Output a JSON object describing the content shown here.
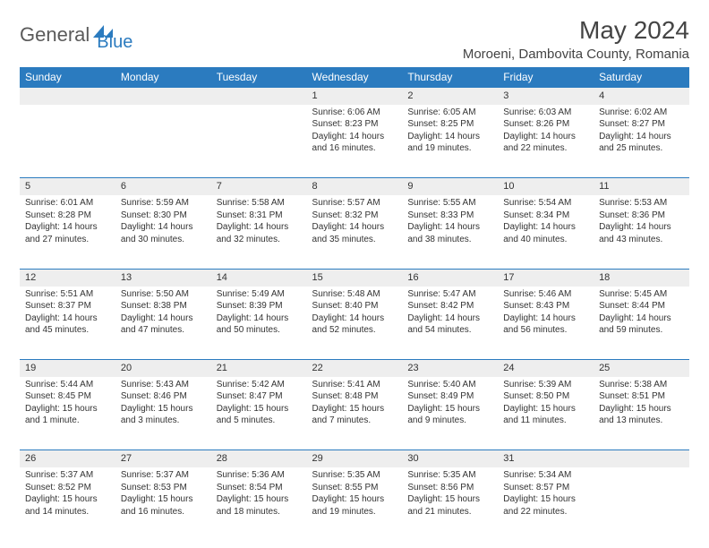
{
  "brand": {
    "part1": "General",
    "part2": "Blue"
  },
  "title": "May 2024",
  "location": "Moroeni, Dambovita County, Romania",
  "colors": {
    "header_bg": "#2b7bbf",
    "daynum_bg": "#eeeeee",
    "text": "#333333",
    "border": "#2b7bbf"
  },
  "day_headers": [
    "Sunday",
    "Monday",
    "Tuesday",
    "Wednesday",
    "Thursday",
    "Friday",
    "Saturday"
  ],
  "weeks": [
    [
      null,
      null,
      null,
      {
        "n": "1",
        "sr": "Sunrise: 6:06 AM",
        "ss": "Sunset: 8:23 PM",
        "d1": "Daylight: 14 hours",
        "d2": "and 16 minutes."
      },
      {
        "n": "2",
        "sr": "Sunrise: 6:05 AM",
        "ss": "Sunset: 8:25 PM",
        "d1": "Daylight: 14 hours",
        "d2": "and 19 minutes."
      },
      {
        "n": "3",
        "sr": "Sunrise: 6:03 AM",
        "ss": "Sunset: 8:26 PM",
        "d1": "Daylight: 14 hours",
        "d2": "and 22 minutes."
      },
      {
        "n": "4",
        "sr": "Sunrise: 6:02 AM",
        "ss": "Sunset: 8:27 PM",
        "d1": "Daylight: 14 hours",
        "d2": "and 25 minutes."
      }
    ],
    [
      {
        "n": "5",
        "sr": "Sunrise: 6:01 AM",
        "ss": "Sunset: 8:28 PM",
        "d1": "Daylight: 14 hours",
        "d2": "and 27 minutes."
      },
      {
        "n": "6",
        "sr": "Sunrise: 5:59 AM",
        "ss": "Sunset: 8:30 PM",
        "d1": "Daylight: 14 hours",
        "d2": "and 30 minutes."
      },
      {
        "n": "7",
        "sr": "Sunrise: 5:58 AM",
        "ss": "Sunset: 8:31 PM",
        "d1": "Daylight: 14 hours",
        "d2": "and 32 minutes."
      },
      {
        "n": "8",
        "sr": "Sunrise: 5:57 AM",
        "ss": "Sunset: 8:32 PM",
        "d1": "Daylight: 14 hours",
        "d2": "and 35 minutes."
      },
      {
        "n": "9",
        "sr": "Sunrise: 5:55 AM",
        "ss": "Sunset: 8:33 PM",
        "d1": "Daylight: 14 hours",
        "d2": "and 38 minutes."
      },
      {
        "n": "10",
        "sr": "Sunrise: 5:54 AM",
        "ss": "Sunset: 8:34 PM",
        "d1": "Daylight: 14 hours",
        "d2": "and 40 minutes."
      },
      {
        "n": "11",
        "sr": "Sunrise: 5:53 AM",
        "ss": "Sunset: 8:36 PM",
        "d1": "Daylight: 14 hours",
        "d2": "and 43 minutes."
      }
    ],
    [
      {
        "n": "12",
        "sr": "Sunrise: 5:51 AM",
        "ss": "Sunset: 8:37 PM",
        "d1": "Daylight: 14 hours",
        "d2": "and 45 minutes."
      },
      {
        "n": "13",
        "sr": "Sunrise: 5:50 AM",
        "ss": "Sunset: 8:38 PM",
        "d1": "Daylight: 14 hours",
        "d2": "and 47 minutes."
      },
      {
        "n": "14",
        "sr": "Sunrise: 5:49 AM",
        "ss": "Sunset: 8:39 PM",
        "d1": "Daylight: 14 hours",
        "d2": "and 50 minutes."
      },
      {
        "n": "15",
        "sr": "Sunrise: 5:48 AM",
        "ss": "Sunset: 8:40 PM",
        "d1": "Daylight: 14 hours",
        "d2": "and 52 minutes."
      },
      {
        "n": "16",
        "sr": "Sunrise: 5:47 AM",
        "ss": "Sunset: 8:42 PM",
        "d1": "Daylight: 14 hours",
        "d2": "and 54 minutes."
      },
      {
        "n": "17",
        "sr": "Sunrise: 5:46 AM",
        "ss": "Sunset: 8:43 PM",
        "d1": "Daylight: 14 hours",
        "d2": "and 56 minutes."
      },
      {
        "n": "18",
        "sr": "Sunrise: 5:45 AM",
        "ss": "Sunset: 8:44 PM",
        "d1": "Daylight: 14 hours",
        "d2": "and 59 minutes."
      }
    ],
    [
      {
        "n": "19",
        "sr": "Sunrise: 5:44 AM",
        "ss": "Sunset: 8:45 PM",
        "d1": "Daylight: 15 hours",
        "d2": "and 1 minute."
      },
      {
        "n": "20",
        "sr": "Sunrise: 5:43 AM",
        "ss": "Sunset: 8:46 PM",
        "d1": "Daylight: 15 hours",
        "d2": "and 3 minutes."
      },
      {
        "n": "21",
        "sr": "Sunrise: 5:42 AM",
        "ss": "Sunset: 8:47 PM",
        "d1": "Daylight: 15 hours",
        "d2": "and 5 minutes."
      },
      {
        "n": "22",
        "sr": "Sunrise: 5:41 AM",
        "ss": "Sunset: 8:48 PM",
        "d1": "Daylight: 15 hours",
        "d2": "and 7 minutes."
      },
      {
        "n": "23",
        "sr": "Sunrise: 5:40 AM",
        "ss": "Sunset: 8:49 PM",
        "d1": "Daylight: 15 hours",
        "d2": "and 9 minutes."
      },
      {
        "n": "24",
        "sr": "Sunrise: 5:39 AM",
        "ss": "Sunset: 8:50 PM",
        "d1": "Daylight: 15 hours",
        "d2": "and 11 minutes."
      },
      {
        "n": "25",
        "sr": "Sunrise: 5:38 AM",
        "ss": "Sunset: 8:51 PM",
        "d1": "Daylight: 15 hours",
        "d2": "and 13 minutes."
      }
    ],
    [
      {
        "n": "26",
        "sr": "Sunrise: 5:37 AM",
        "ss": "Sunset: 8:52 PM",
        "d1": "Daylight: 15 hours",
        "d2": "and 14 minutes."
      },
      {
        "n": "27",
        "sr": "Sunrise: 5:37 AM",
        "ss": "Sunset: 8:53 PM",
        "d1": "Daylight: 15 hours",
        "d2": "and 16 minutes."
      },
      {
        "n": "28",
        "sr": "Sunrise: 5:36 AM",
        "ss": "Sunset: 8:54 PM",
        "d1": "Daylight: 15 hours",
        "d2": "and 18 minutes."
      },
      {
        "n": "29",
        "sr": "Sunrise: 5:35 AM",
        "ss": "Sunset: 8:55 PM",
        "d1": "Daylight: 15 hours",
        "d2": "and 19 minutes."
      },
      {
        "n": "30",
        "sr": "Sunrise: 5:35 AM",
        "ss": "Sunset: 8:56 PM",
        "d1": "Daylight: 15 hours",
        "d2": "and 21 minutes."
      },
      {
        "n": "31",
        "sr": "Sunrise: 5:34 AM",
        "ss": "Sunset: 8:57 PM",
        "d1": "Daylight: 15 hours",
        "d2": "and 22 minutes."
      },
      null
    ]
  ]
}
